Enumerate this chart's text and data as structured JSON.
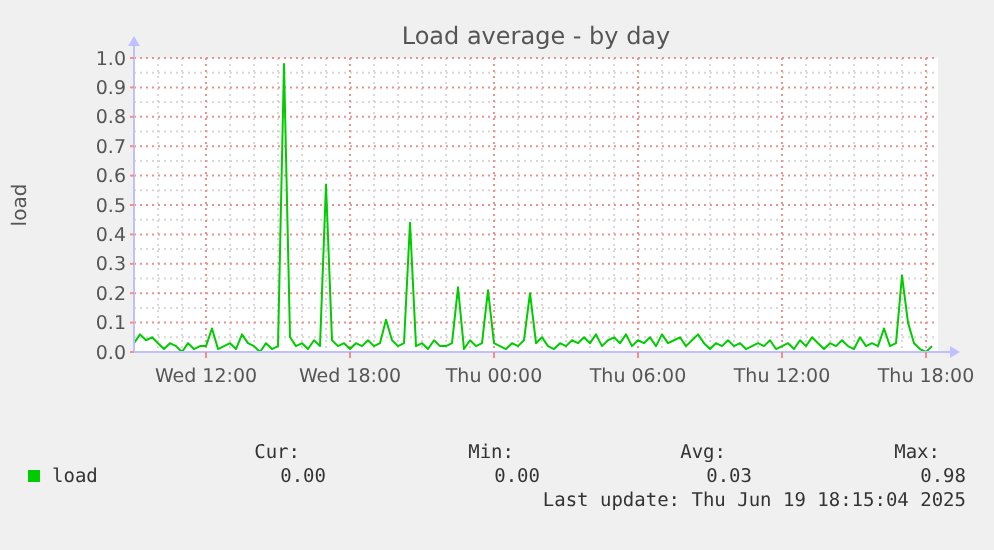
{
  "chart_data": {
    "type": "line",
    "title": "Load average - by day",
    "ylabel": "load",
    "x": [
      "2025-06-18T09:00",
      "2025-06-18T09:15",
      "2025-06-18T09:30",
      "2025-06-18T09:45",
      "2025-06-18T10:00",
      "2025-06-18T10:15",
      "2025-06-18T10:30",
      "2025-06-18T10:45",
      "2025-06-18T11:00",
      "2025-06-18T11:15",
      "2025-06-18T11:30",
      "2025-06-18T11:45",
      "2025-06-18T12:00",
      "2025-06-18T12:15",
      "2025-06-18T12:30",
      "2025-06-18T12:45",
      "2025-06-18T13:00",
      "2025-06-18T13:15",
      "2025-06-18T13:30",
      "2025-06-18T13:45",
      "2025-06-18T14:00",
      "2025-06-18T14:15",
      "2025-06-18T14:30",
      "2025-06-18T14:45",
      "2025-06-18T15:00",
      "2025-06-18T15:15",
      "2025-06-18T15:30",
      "2025-06-18T15:45",
      "2025-06-18T16:00",
      "2025-06-18T16:15",
      "2025-06-18T16:30",
      "2025-06-18T16:45",
      "2025-06-18T17:00",
      "2025-06-18T17:15",
      "2025-06-18T17:30",
      "2025-06-18T17:45",
      "2025-06-18T18:00",
      "2025-06-18T18:15",
      "2025-06-18T18:30",
      "2025-06-18T18:45",
      "2025-06-18T19:00",
      "2025-06-18T19:15",
      "2025-06-18T19:30",
      "2025-06-18T19:45",
      "2025-06-18T20:00",
      "2025-06-18T20:15",
      "2025-06-18T20:30",
      "2025-06-18T20:45",
      "2025-06-18T21:00",
      "2025-06-18T21:15",
      "2025-06-18T21:30",
      "2025-06-18T21:45",
      "2025-06-18T22:00",
      "2025-06-18T22:15",
      "2025-06-18T22:30",
      "2025-06-18T22:45",
      "2025-06-18T23:00",
      "2025-06-18T23:15",
      "2025-06-18T23:30",
      "2025-06-18T23:45",
      "2025-06-19T00:00",
      "2025-06-19T00:15",
      "2025-06-19T00:30",
      "2025-06-19T00:45",
      "2025-06-19T01:00",
      "2025-06-19T01:15",
      "2025-06-19T01:30",
      "2025-06-19T01:45",
      "2025-06-19T02:00",
      "2025-06-19T02:15",
      "2025-06-19T02:30",
      "2025-06-19T02:45",
      "2025-06-19T03:00",
      "2025-06-19T03:15",
      "2025-06-19T03:30",
      "2025-06-19T03:45",
      "2025-06-19T04:00",
      "2025-06-19T04:15",
      "2025-06-19T04:30",
      "2025-06-19T04:45",
      "2025-06-19T05:00",
      "2025-06-19T05:15",
      "2025-06-19T05:30",
      "2025-06-19T05:45",
      "2025-06-19T06:00",
      "2025-06-19T06:15",
      "2025-06-19T06:30",
      "2025-06-19T06:45",
      "2025-06-19T07:00",
      "2025-06-19T07:15",
      "2025-06-19T07:30",
      "2025-06-19T07:45",
      "2025-06-19T08:00",
      "2025-06-19T08:15",
      "2025-06-19T08:30",
      "2025-06-19T08:45",
      "2025-06-19T09:00",
      "2025-06-19T09:15",
      "2025-06-19T09:30",
      "2025-06-19T09:45",
      "2025-06-19T10:00",
      "2025-06-19T10:15",
      "2025-06-19T10:30",
      "2025-06-19T10:45",
      "2025-06-19T11:00",
      "2025-06-19T11:15",
      "2025-06-19T11:30",
      "2025-06-19T11:45",
      "2025-06-19T12:00",
      "2025-06-19T12:15",
      "2025-06-19T12:30",
      "2025-06-19T12:45",
      "2025-06-19T13:00",
      "2025-06-19T13:15",
      "2025-06-19T13:30",
      "2025-06-19T13:45",
      "2025-06-19T14:00",
      "2025-06-19T14:15",
      "2025-06-19T14:30",
      "2025-06-19T14:45",
      "2025-06-19T15:00",
      "2025-06-19T15:15",
      "2025-06-19T15:30",
      "2025-06-19T15:45",
      "2025-06-19T16:00",
      "2025-06-19T16:15",
      "2025-06-19T16:30",
      "2025-06-19T16:45",
      "2025-06-19T17:00",
      "2025-06-19T17:15",
      "2025-06-19T17:30",
      "2025-06-19T17:45",
      "2025-06-19T18:00",
      "2025-06-19T18:15"
    ],
    "series": [
      {
        "name": "load",
        "color": "#00cc00",
        "values": [
          0.03,
          0.06,
          0.04,
          0.05,
          0.03,
          0.01,
          0.03,
          0.02,
          0.0,
          0.03,
          0.01,
          0.02,
          0.02,
          0.08,
          0.01,
          0.02,
          0.03,
          0.01,
          0.06,
          0.03,
          0.02,
          0.0,
          0.03,
          0.01,
          0.02,
          0.98,
          0.05,
          0.02,
          0.03,
          0.01,
          0.04,
          0.02,
          0.57,
          0.04,
          0.02,
          0.03,
          0.01,
          0.03,
          0.02,
          0.04,
          0.02,
          0.03,
          0.11,
          0.04,
          0.02,
          0.03,
          0.44,
          0.02,
          0.03,
          0.01,
          0.04,
          0.02,
          0.02,
          0.03,
          0.22,
          0.01,
          0.04,
          0.02,
          0.03,
          0.21,
          0.03,
          0.02,
          0.01,
          0.03,
          0.02,
          0.04,
          0.2,
          0.03,
          0.05,
          0.02,
          0.01,
          0.03,
          0.02,
          0.04,
          0.03,
          0.05,
          0.03,
          0.06,
          0.02,
          0.04,
          0.05,
          0.03,
          0.06,
          0.02,
          0.04,
          0.03,
          0.05,
          0.02,
          0.06,
          0.03,
          0.04,
          0.05,
          0.02,
          0.04,
          0.06,
          0.03,
          0.01,
          0.03,
          0.02,
          0.04,
          0.02,
          0.03,
          0.01,
          0.02,
          0.03,
          0.02,
          0.04,
          0.01,
          0.02,
          0.03,
          0.01,
          0.04,
          0.02,
          0.05,
          0.03,
          0.01,
          0.03,
          0.02,
          0.04,
          0.02,
          0.01,
          0.05,
          0.02,
          0.03,
          0.02,
          0.08,
          0.02,
          0.03,
          0.26,
          0.1,
          0.03,
          0.01,
          0.0,
          0.02
        ]
      }
    ],
    "xlim": [
      "2025-06-18T09:00",
      "2025-06-19T18:30"
    ],
    "xticks": [
      {
        "value": "2025-06-18T12:00",
        "label": "Wed 12:00"
      },
      {
        "value": "2025-06-18T18:00",
        "label": "Wed 18:00"
      },
      {
        "value": "2025-06-19T00:00",
        "label": "Thu 00:00"
      },
      {
        "value": "2025-06-19T06:00",
        "label": "Thu 06:00"
      },
      {
        "value": "2025-06-19T12:00",
        "label": "Thu 12:00"
      },
      {
        "value": "2025-06-19T18:00",
        "label": "Thu 18:00"
      }
    ],
    "ylim": [
      0,
      1
    ],
    "yticks": [
      {
        "value": 0,
        "label": "0.0"
      },
      {
        "value": 0.1,
        "label": "0.1"
      },
      {
        "value": 0.2,
        "label": "0.2"
      },
      {
        "value": 0.3,
        "label": "0.3"
      },
      {
        "value": 0.4,
        "label": "0.4"
      },
      {
        "value": 0.5,
        "label": "0.5"
      },
      {
        "value": 0.6,
        "label": "0.6"
      },
      {
        "value": 0.7,
        "label": "0.7"
      },
      {
        "value": 0.8,
        "label": "0.8"
      },
      {
        "value": 0.9,
        "label": "0.9"
      },
      {
        "value": 1,
        "label": "1.0"
      }
    ],
    "grid": true,
    "legend": "bottom",
    "line_style": "solid",
    "annotations": [
      "Cur:",
      "0.00",
      "Min:",
      "0.00",
      "Avg:",
      "0.03",
      "Max:",
      "0.98",
      "Last update: Thu Jun 19 18:15:04 2025"
    ]
  }
}
